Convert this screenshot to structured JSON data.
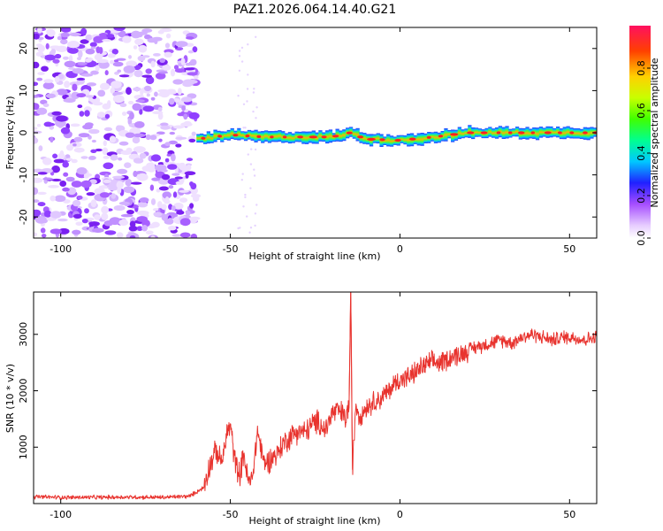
{
  "title": "PAZ1.2026.064.14.40.G21",
  "chart_data": [
    {
      "type": "heatmap",
      "name": "spectrogram",
      "xlabel": "Height of straight line (km)",
      "ylabel": "Frequency (Hz)",
      "xlim": [
        -108,
        58
      ],
      "ylim": [
        -25,
        25
      ],
      "xticks": [
        -100,
        -50,
        0,
        50
      ],
      "yticks": [
        -20,
        -10,
        0,
        10,
        20
      ],
      "colorbar": {
        "label": "Normalized spectral amplitude",
        "range": [
          0,
          1
        ],
        "ticks": [
          0.0,
          0.2,
          0.4,
          0.6,
          0.8
        ],
        "tick_labels": [
          "0.0",
          "0.2",
          "0.4",
          "0.6",
          "0.8"
        ]
      },
      "regions": [
        {
          "description": "noise",
          "x_range": [
            -108,
            -60
          ],
          "freq_range": [
            -25,
            25
          ],
          "amplitude_range": [
            0.0,
            0.15
          ]
        },
        {
          "description": "signal track",
          "x_range": [
            -60,
            58
          ],
          "freq_center_track": [
            [
              -60,
              -1.5
            ],
            [
              -50,
              -0.5
            ],
            [
              -40,
              -1.0
            ],
            [
              -30,
              -1.0
            ],
            [
              -20,
              -1.0
            ],
            [
              -15,
              0.0
            ],
            [
              -10,
              -1.5
            ],
            [
              0,
              -1.8
            ],
            [
              10,
              -1.0
            ],
            [
              20,
              0.0
            ],
            [
              30,
              0.0
            ],
            [
              40,
              0.0
            ],
            [
              50,
              0.0
            ],
            [
              58,
              0.0
            ]
          ],
          "amplitude_range": [
            0.3,
            1.0
          ]
        }
      ]
    },
    {
      "type": "line",
      "name": "snr",
      "xlabel": "Height of straight line (km)",
      "ylabel": "SNR (10 * v/v)",
      "xlim": [
        -108,
        58
      ],
      "ylim": [
        0,
        3750
      ],
      "xticks": [
        -100,
        -50,
        0,
        50
      ],
      "yticks": [
        1000,
        2000,
        3000
      ],
      "color": "#e8332e",
      "series": [
        {
          "name": "SNR",
          "x": [
            -108,
            -100,
            -90,
            -80,
            -70,
            -62,
            -58,
            -56,
            -54,
            -53,
            -52,
            -51,
            -50,
            -49,
            -48,
            -47,
            -46,
            -45,
            -44,
            -43,
            -42,
            -41,
            -40,
            -38,
            -36,
            -34,
            -32,
            -30,
            -28,
            -26,
            -24,
            -22,
            -20,
            -18,
            -16,
            -15,
            -14.5,
            -14,
            -13.5,
            -13,
            -12,
            -10,
            -8,
            -6,
            -4,
            -2,
            0,
            3,
            6,
            9,
            12,
            15,
            18,
            21,
            24,
            27,
            30,
            33,
            36,
            39,
            42,
            45,
            48,
            51,
            54,
            58
          ],
          "y": [
            120,
            110,
            110,
            115,
            110,
            130,
            280,
            700,
            950,
            750,
            850,
            1250,
            1400,
            900,
            600,
            550,
            900,
            450,
            350,
            700,
            1300,
            1000,
            700,
            800,
            900,
            1100,
            1200,
            1300,
            1250,
            1400,
            1450,
            1300,
            1600,
            1650,
            1500,
            1750,
            3750,
            600,
            1200,
            1800,
            1550,
            1700,
            1800,
            1850,
            1950,
            2100,
            2200,
            2250,
            2400,
            2500,
            2500,
            2600,
            2650,
            2750,
            2800,
            2850,
            2900,
            2850,
            2950,
            3000,
            2950,
            2900,
            2950,
            2950,
            2900,
            2950
          ]
        }
      ]
    }
  ]
}
